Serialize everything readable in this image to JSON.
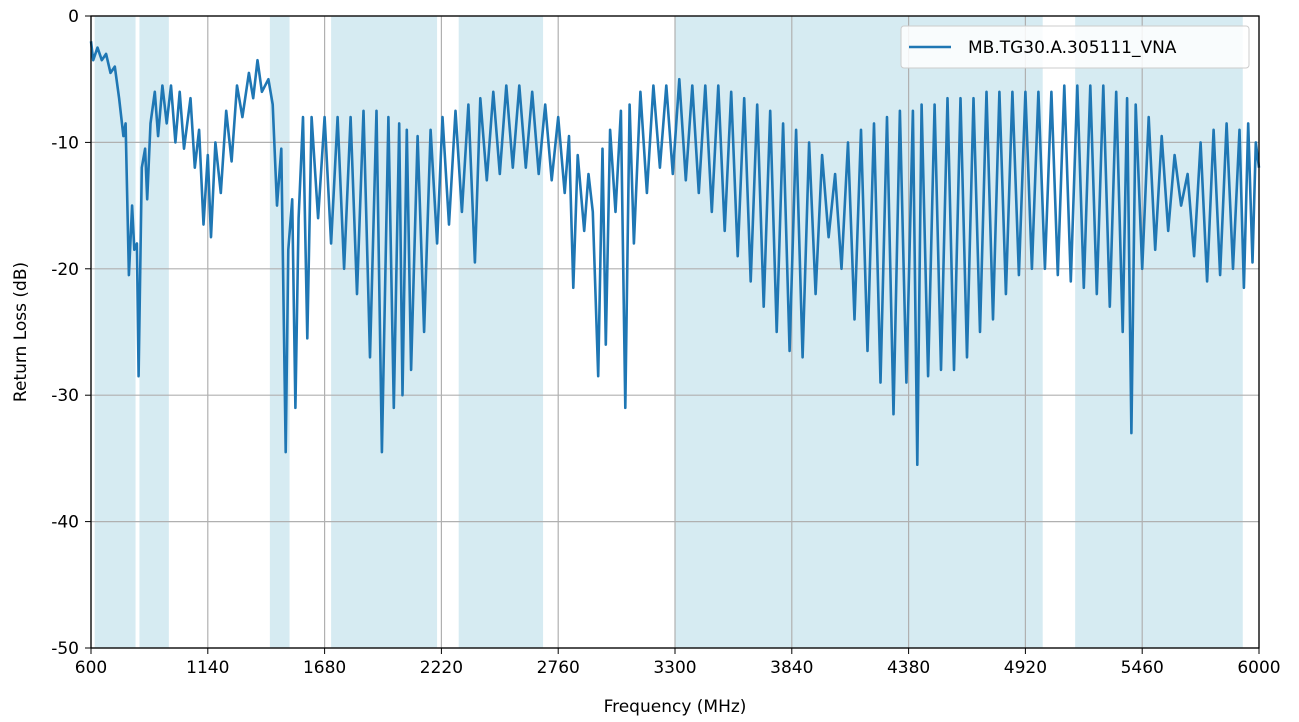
{
  "chart_data": {
    "type": "line",
    "title": "",
    "xlabel": "Frequency (MHz)",
    "ylabel": "Return Loss (dB)",
    "xlim": [
      600,
      6000
    ],
    "ylim": [
      -50,
      0
    ],
    "x_ticks": [
      600,
      1140,
      1680,
      2220,
      2760,
      3300,
      3840,
      4380,
      4920,
      5460,
      6000
    ],
    "y_ticks": [
      0,
      -10,
      -20,
      -30,
      -40,
      -50
    ],
    "grid": true,
    "legend_position": "top-right",
    "shaded_bands_mhz": [
      [
        617,
        806
      ],
      [
        824,
        960
      ],
      [
        1427,
        1518
      ],
      [
        1710,
        2200
      ],
      [
        2300,
        2690
      ],
      [
        3300,
        5000
      ],
      [
        5150,
        5925
      ]
    ],
    "series": [
      {
        "name": "MB.TG30.A.305111_VNA",
        "color": "#1f77b4",
        "points": [
          [
            600,
            -2.0
          ],
          [
            610,
            -3.5
          ],
          [
            630,
            -2.5
          ],
          [
            650,
            -3.5
          ],
          [
            670,
            -3.0
          ],
          [
            690,
            -4.5
          ],
          [
            710,
            -4.0
          ],
          [
            730,
            -6.5
          ],
          [
            750,
            -9.5
          ],
          [
            760,
            -8.5
          ],
          [
            775,
            -20.5
          ],
          [
            790,
            -15.0
          ],
          [
            800,
            -18.5
          ],
          [
            812,
            -18.0
          ],
          [
            820,
            -28.5
          ],
          [
            835,
            -12.0
          ],
          [
            850,
            -10.5
          ],
          [
            860,
            -14.5
          ],
          [
            875,
            -8.5
          ],
          [
            895,
            -6.0
          ],
          [
            910,
            -9.5
          ],
          [
            930,
            -5.5
          ],
          [
            950,
            -8.5
          ],
          [
            970,
            -5.5
          ],
          [
            990,
            -10.0
          ],
          [
            1010,
            -6.0
          ],
          [
            1030,
            -10.5
          ],
          [
            1060,
            -6.5
          ],
          [
            1080,
            -12.0
          ],
          [
            1100,
            -9.0
          ],
          [
            1120,
            -16.5
          ],
          [
            1140,
            -11.0
          ],
          [
            1155,
            -17.5
          ],
          [
            1175,
            -10.0
          ],
          [
            1200,
            -14.0
          ],
          [
            1225,
            -7.5
          ],
          [
            1250,
            -11.5
          ],
          [
            1275,
            -5.5
          ],
          [
            1300,
            -8.0
          ],
          [
            1330,
            -4.5
          ],
          [
            1350,
            -6.5
          ],
          [
            1370,
            -3.5
          ],
          [
            1390,
            -6.0
          ],
          [
            1420,
            -5.0
          ],
          [
            1440,
            -7.0
          ],
          [
            1460,
            -15.0
          ],
          [
            1480,
            -10.5
          ],
          [
            1500,
            -34.5
          ],
          [
            1512,
            -18.5
          ],
          [
            1530,
            -14.5
          ],
          [
            1545,
            -31.0
          ],
          [
            1560,
            -16.0
          ],
          [
            1580,
            -8.0
          ],
          [
            1600,
            -25.5
          ],
          [
            1620,
            -8.0
          ],
          [
            1650,
            -16.0
          ],
          [
            1680,
            -8.0
          ],
          [
            1710,
            -18.0
          ],
          [
            1740,
            -8.0
          ],
          [
            1770,
            -20.0
          ],
          [
            1800,
            -8.0
          ],
          [
            1830,
            -22.0
          ],
          [
            1860,
            -7.5
          ],
          [
            1890,
            -27.0
          ],
          [
            1920,
            -7.5
          ],
          [
            1945,
            -34.5
          ],
          [
            1975,
            -8.0
          ],
          [
            2000,
            -31.0
          ],
          [
            2025,
            -8.5
          ],
          [
            2040,
            -30.0
          ],
          [
            2060,
            -9.0
          ],
          [
            2080,
            -28.0
          ],
          [
            2110,
            -9.5
          ],
          [
            2140,
            -25.0
          ],
          [
            2170,
            -9.0
          ],
          [
            2200,
            -18.0
          ],
          [
            2225,
            -8.0
          ],
          [
            2255,
            -16.5
          ],
          [
            2285,
            -7.5
          ],
          [
            2315,
            -15.5
          ],
          [
            2345,
            -7.0
          ],
          [
            2375,
            -19.5
          ],
          [
            2400,
            -6.5
          ],
          [
            2430,
            -13.0
          ],
          [
            2460,
            -6.0
          ],
          [
            2490,
            -12.5
          ],
          [
            2520,
            -5.5
          ],
          [
            2550,
            -12.0
          ],
          [
            2580,
            -5.5
          ],
          [
            2610,
            -12.0
          ],
          [
            2640,
            -6.0
          ],
          [
            2670,
            -12.5
          ],
          [
            2700,
            -7.0
          ],
          [
            2730,
            -13.0
          ],
          [
            2760,
            -8.0
          ],
          [
            2790,
            -14.0
          ],
          [
            2810,
            -9.5
          ],
          [
            2830,
            -21.5
          ],
          [
            2850,
            -11.0
          ],
          [
            2880,
            -17.0
          ],
          [
            2900,
            -12.5
          ],
          [
            2920,
            -15.5
          ],
          [
            2945,
            -28.5
          ],
          [
            2965,
            -10.5
          ],
          [
            2980,
            -26.0
          ],
          [
            3000,
            -9.0
          ],
          [
            3025,
            -15.5
          ],
          [
            3050,
            -7.5
          ],
          [
            3070,
            -31.0
          ],
          [
            3090,
            -7.0
          ],
          [
            3110,
            -18.0
          ],
          [
            3140,
            -6.0
          ],
          [
            3170,
            -14.0
          ],
          [
            3200,
            -5.5
          ],
          [
            3230,
            -12.0
          ],
          [
            3260,
            -5.5
          ],
          [
            3290,
            -12.5
          ],
          [
            3320,
            -5.0
          ],
          [
            3350,
            -13.0
          ],
          [
            3380,
            -5.5
          ],
          [
            3410,
            -14.0
          ],
          [
            3440,
            -5.5
          ],
          [
            3470,
            -15.5
          ],
          [
            3500,
            -5.5
          ],
          [
            3530,
            -17.0
          ],
          [
            3560,
            -6.0
          ],
          [
            3590,
            -19.0
          ],
          [
            3620,
            -6.5
          ],
          [
            3650,
            -21.0
          ],
          [
            3680,
            -7.0
          ],
          [
            3710,
            -23.0
          ],
          [
            3740,
            -7.5
          ],
          [
            3770,
            -25.0
          ],
          [
            3800,
            -8.5
          ],
          [
            3830,
            -26.5
          ],
          [
            3860,
            -9.0
          ],
          [
            3890,
            -27.0
          ],
          [
            3920,
            -10.0
          ],
          [
            3950,
            -22.0
          ],
          [
            3980,
            -11.0
          ],
          [
            4010,
            -17.5
          ],
          [
            4040,
            -12.5
          ],
          [
            4070,
            -20.0
          ],
          [
            4100,
            -10.0
          ],
          [
            4130,
            -24.0
          ],
          [
            4160,
            -9.0
          ],
          [
            4190,
            -26.5
          ],
          [
            4220,
            -8.5
          ],
          [
            4250,
            -29.0
          ],
          [
            4280,
            -8.0
          ],
          [
            4310,
            -31.5
          ],
          [
            4340,
            -7.5
          ],
          [
            4370,
            -29.0
          ],
          [
            4400,
            -7.5
          ],
          [
            4420,
            -35.5
          ],
          [
            4440,
            -7.0
          ],
          [
            4470,
            -28.5
          ],
          [
            4500,
            -7.0
          ],
          [
            4530,
            -28.0
          ],
          [
            4560,
            -6.5
          ],
          [
            4590,
            -28.0
          ],
          [
            4620,
            -6.5
          ],
          [
            4650,
            -27.0
          ],
          [
            4680,
            -6.5
          ],
          [
            4710,
            -25.0
          ],
          [
            4740,
            -6.0
          ],
          [
            4770,
            -24.0
          ],
          [
            4800,
            -6.0
          ],
          [
            4830,
            -22.0
          ],
          [
            4860,
            -6.0
          ],
          [
            4890,
            -20.5
          ],
          [
            4920,
            -6.0
          ],
          [
            4950,
            -20.0
          ],
          [
            4980,
            -6.0
          ],
          [
            5010,
            -20.0
          ],
          [
            5040,
            -6.0
          ],
          [
            5070,
            -20.5
          ],
          [
            5100,
            -5.5
          ],
          [
            5130,
            -21.0
          ],
          [
            5160,
            -5.5
          ],
          [
            5190,
            -21.5
          ],
          [
            5220,
            -5.5
          ],
          [
            5250,
            -22.0
          ],
          [
            5280,
            -5.5
          ],
          [
            5310,
            -23.0
          ],
          [
            5340,
            -6.0
          ],
          [
            5370,
            -25.0
          ],
          [
            5390,
            -6.5
          ],
          [
            5410,
            -33.0
          ],
          [
            5430,
            -7.0
          ],
          [
            5460,
            -20.0
          ],
          [
            5490,
            -8.0
          ],
          [
            5520,
            -18.5
          ],
          [
            5550,
            -9.5
          ],
          [
            5580,
            -17.0
          ],
          [
            5610,
            -11.0
          ],
          [
            5640,
            -15.0
          ],
          [
            5670,
            -12.5
          ],
          [
            5700,
            -19.0
          ],
          [
            5730,
            -10.0
          ],
          [
            5760,
            -21.0
          ],
          [
            5790,
            -9.0
          ],
          [
            5820,
            -20.5
          ],
          [
            5850,
            -8.5
          ],
          [
            5880,
            -20.0
          ],
          [
            5910,
            -9.0
          ],
          [
            5930,
            -21.5
          ],
          [
            5950,
            -8.5
          ],
          [
            5970,
            -19.5
          ],
          [
            5985,
            -10.0
          ],
          [
            6000,
            -12.0
          ]
        ]
      }
    ]
  }
}
